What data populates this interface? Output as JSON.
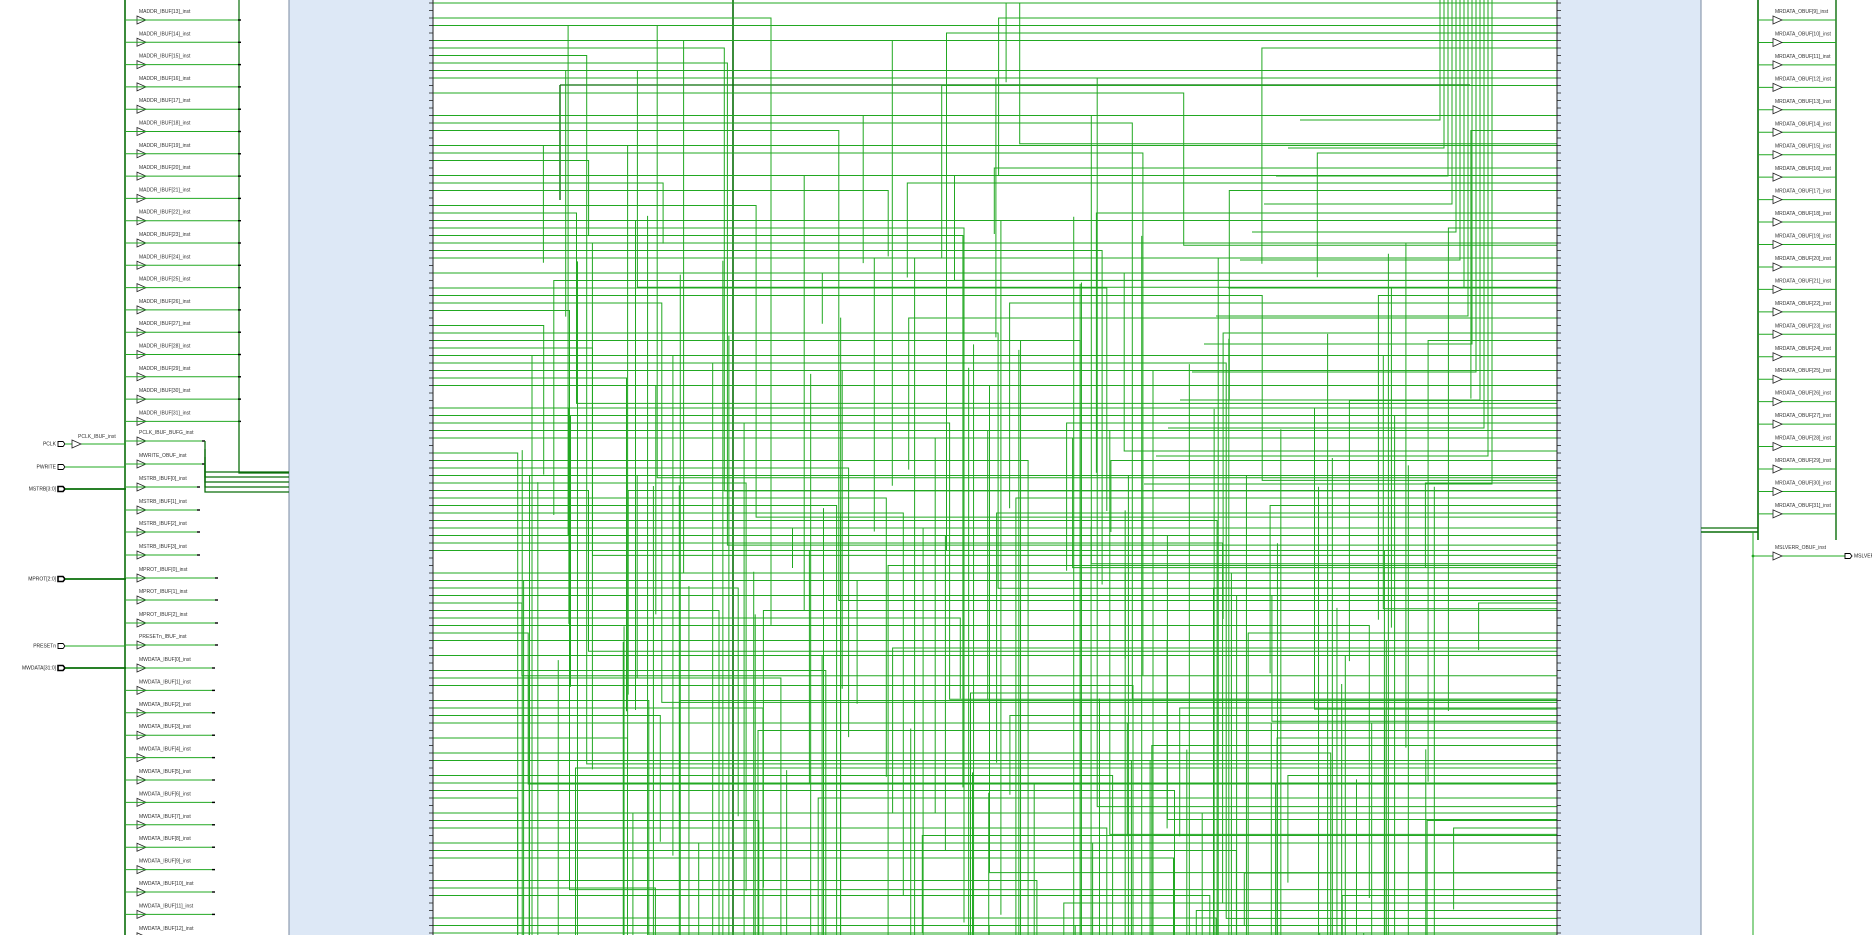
{
  "colors": {
    "wire": "#22a822",
    "bus": "#0a6e0a",
    "block_fill": "#dde8f6",
    "block_stroke": "#7a8aa0",
    "cell": "#222222",
    "background": "#ffffff"
  },
  "left_ports": {
    "clock": {
      "name": "PCLK",
      "cell": "PCLK_IBUF_inst"
    },
    "pwrite": {
      "name": "PWRITE"
    },
    "mstrb": {
      "name": "MSTRB[3:0]"
    },
    "mprot": {
      "name": "MPROT[2:0]"
    },
    "presetn": {
      "name": "PRESETn"
    },
    "mwdata": {
      "name": "MWDATA[31:0]"
    }
  },
  "left_top_cells": [
    "MADDR_IBUF[13]_inst",
    "MADDR_IBUF[14]_inst",
    "MADDR_IBUF[15]_inst",
    "MADDR_IBUF[16]_inst",
    "MADDR_IBUF[17]_inst",
    "MADDR_IBUF[18]_inst",
    "MADDR_IBUF[19]_inst",
    "MADDR_IBUF[20]_inst",
    "MADDR_IBUF[21]_inst",
    "MADDR_IBUF[22]_inst",
    "MADDR_IBUF[23]_inst",
    "MADDR_IBUF[24]_inst",
    "MADDR_IBUF[25]_inst",
    "MADDR_IBUF[26]_inst",
    "MADDR_IBUF[27]_inst",
    "MADDR_IBUF[28]_inst",
    "MADDR_IBUF[29]_inst",
    "MADDR_IBUF[30]_inst",
    "MADDR_IBUF[31]_inst"
  ],
  "left_mid_cells": [
    "PCLK_IBUF_BUFG_inst",
    "MWRITE_OBUF_inst",
    "MSTRB_IBUF[0]_inst",
    "MSTRB_IBUF[1]_inst",
    "MSTRB_IBUF[2]_inst",
    "MSTRB_IBUF[3]_inst",
    "MPROT_IBUF[0]_inst",
    "MPROT_IBUF[1]_inst",
    "MPROT_IBUF[2]_inst",
    "PRESETn_IBUF_inst"
  ],
  "left_bottom_cells": [
    "MWDATA_IBUF[0]_inst",
    "MWDATA_IBUF[1]_inst",
    "MWDATA_IBUF[2]_inst",
    "MWDATA_IBUF[3]_inst",
    "MWDATA_IBUF[4]_inst",
    "MWDATA_IBUF[5]_inst",
    "MWDATA_IBUF[6]_inst",
    "MWDATA_IBUF[7]_inst",
    "MWDATA_IBUF[8]_inst",
    "MWDATA_IBUF[9]_inst",
    "MWDATA_IBUF[10]_inst",
    "MWDATA_IBUF[11]_inst",
    "MWDATA_IBUF[12]_inst"
  ],
  "right_cells": [
    "MRDATA_OBUF[9]_inst",
    "MRDATA_OBUF[10]_inst",
    "MRDATA_OBUF[11]_inst",
    "MRDATA_OBUF[12]_inst",
    "MRDATA_OBUF[13]_inst",
    "MRDATA_OBUF[14]_inst",
    "MRDATA_OBUF[15]_inst",
    "MRDATA_OBUF[16]_inst",
    "MRDATA_OBUF[17]_inst",
    "MRDATA_OBUF[18]_inst",
    "MRDATA_OBUF[19]_inst",
    "MRDATA_OBUF[20]_inst",
    "MRDATA_OBUF[21]_inst",
    "MRDATA_OBUF[22]_inst",
    "MRDATA_OBUF[23]_inst",
    "MRDATA_OBUF[24]_inst",
    "MRDATA_OBUF[25]_inst",
    "MRDATA_OBUF[26]_inst",
    "MRDATA_OBUF[27]_inst",
    "MRDATA_OBUF[28]_inst",
    "MRDATA_OBUF[29]_inst",
    "MRDATA_OBUF[30]_inst",
    "MRDATA_OBUF[31]_inst"
  ],
  "right_output": {
    "cell": "MSLVERR_OBUF_inst",
    "port": "MSLVERR"
  }
}
